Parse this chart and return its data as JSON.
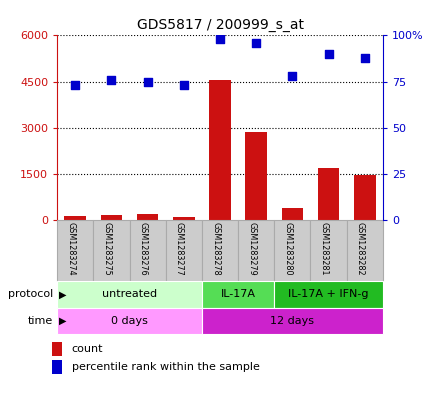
{
  "title": "GDS5817 / 200999_s_at",
  "samples": [
    "GSM1283274",
    "GSM1283275",
    "GSM1283276",
    "GSM1283277",
    "GSM1283278",
    "GSM1283279",
    "GSM1283280",
    "GSM1283281",
    "GSM1283282"
  ],
  "counts": [
    120,
    160,
    210,
    115,
    4550,
    2850,
    380,
    1700,
    1450
  ],
  "percentiles": [
    73,
    76,
    75,
    73,
    98,
    96,
    78,
    90,
    88
  ],
  "ylim_left": [
    0,
    6000
  ],
  "ylim_right": [
    0,
    100
  ],
  "yticks_left": [
    0,
    1500,
    3000,
    4500,
    6000
  ],
  "ytick_labels_left": [
    "0",
    "1500",
    "3000",
    "4500",
    "6000"
  ],
  "yticks_right": [
    0,
    25,
    50,
    75,
    100
  ],
  "ytick_labels_right": [
    "0",
    "25",
    "50",
    "75",
    "100%"
  ],
  "bar_color": "#cc1111",
  "dot_color": "#0000cc",
  "protocol_groups": [
    {
      "label": "untreated",
      "start": 0,
      "end": 4,
      "color": "#ccffcc"
    },
    {
      "label": "IL-17A",
      "start": 4,
      "end": 6,
      "color": "#55dd55"
    },
    {
      "label": "IL-17A + IFN-g",
      "start": 6,
      "end": 9,
      "color": "#22bb22"
    }
  ],
  "time_groups": [
    {
      "label": "0 days",
      "start": 0,
      "end": 4,
      "color": "#ff99ff"
    },
    {
      "label": "12 days",
      "start": 4,
      "end": 9,
      "color": "#cc22cc"
    }
  ],
  "protocol_label": "protocol",
  "time_label": "time",
  "legend_count": "count",
  "legend_percentile": "percentile rank within the sample",
  "bar_width": 0.6,
  "bar_color_left": "#cc1111",
  "dot_color_right": "#0000cc",
  "sample_box_color": "#cccccc",
  "sample_box_edge": "#aaaaaa",
  "bg_color": "#ffffff"
}
